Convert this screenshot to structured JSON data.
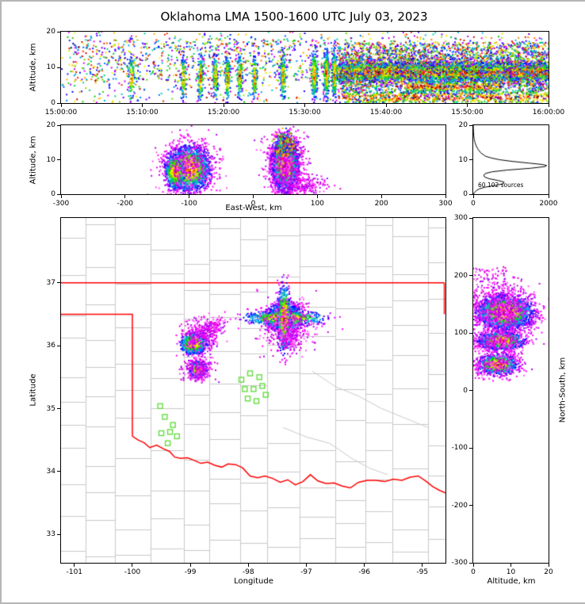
{
  "title": "Oklahoma LMA 1500-1600 UTC July 03, 2023",
  "accent_colors": {
    "state_border": "#ff0000",
    "county_line": "#c9c9c9",
    "station_marker": "#63dd3f",
    "frame": "#000000",
    "histogram_line": "#000000"
  },
  "chart_data": [
    {
      "id": "time_height",
      "type": "scatter",
      "xlabel": "",
      "ylabel": "Altitude, km",
      "xlim": [
        0,
        3600
      ],
      "ylim": [
        0,
        20
      ],
      "xticks": {
        "values": [
          0,
          600,
          1200,
          1800,
          2400,
          3000,
          3600
        ],
        "labels": [
          "15:00:00",
          "15:10:00",
          "15:20:00",
          "15:30:00",
          "15:40:00",
          "15:50:00",
          "16:00:00"
        ]
      },
      "yticks": {
        "values": [
          0,
          10,
          20
        ],
        "labels": [
          "0",
          "10",
          "20"
        ]
      },
      "layers": [
        {
          "kind": "uniform",
          "x0": 0,
          "x1": 3600,
          "y0": 0,
          "y1": 20,
          "n": 900,
          "style": "speckle"
        },
        {
          "kind": "uniform",
          "x0": 60,
          "x1": 2050,
          "y0": 6,
          "y1": 18,
          "n": 650,
          "style": "speckle"
        },
        {
          "kind": "uniform",
          "x0": 2050,
          "x1": 3600,
          "y0": 10,
          "y1": 17,
          "n": 1200,
          "style": "speckle"
        },
        {
          "kind": "gauss",
          "cx": 520,
          "cy": 7,
          "sx": 12,
          "sy": 3.0,
          "n": 90,
          "style": "storm"
        },
        {
          "kind": "gauss",
          "cx": 905,
          "cy": 7,
          "sx": 10,
          "sy": 3.0,
          "n": 120,
          "style": "storm"
        },
        {
          "kind": "gauss",
          "cx": 1030,
          "cy": 7,
          "sx": 10,
          "sy": 3.2,
          "n": 160,
          "style": "storm"
        },
        {
          "kind": "gauss",
          "cx": 1140,
          "cy": 7.5,
          "sx": 9,
          "sy": 3.0,
          "n": 150,
          "style": "storm"
        },
        {
          "kind": "gauss",
          "cx": 1230,
          "cy": 7,
          "sx": 9,
          "sy": 3.2,
          "n": 170,
          "style": "storm"
        },
        {
          "kind": "gauss",
          "cx": 1320,
          "cy": 7.5,
          "sx": 10,
          "sy": 3.0,
          "n": 160,
          "style": "storm"
        },
        {
          "kind": "gauss",
          "cx": 1430,
          "cy": 7,
          "sx": 9,
          "sy": 3.0,
          "n": 140,
          "style": "storm"
        },
        {
          "kind": "gauss",
          "cx": 1640,
          "cy": 7.5,
          "sx": 10,
          "sy": 3.2,
          "n": 150,
          "style": "storm"
        },
        {
          "kind": "gauss",
          "cx": 1870,
          "cy": 8,
          "sx": 11,
          "sy": 3.4,
          "n": 260,
          "style": "storm"
        },
        {
          "kind": "gauss",
          "cx": 1960,
          "cy": 8,
          "sx": 10,
          "sy": 3.4,
          "n": 260,
          "style": "storm"
        },
        {
          "kind": "gauss",
          "cx": 2020,
          "cy": 8,
          "sx": 10,
          "sy": 3.4,
          "n": 240,
          "style": "storm"
        },
        {
          "kind": "band",
          "x0": 2050,
          "x1": 3600,
          "cy": 8.6,
          "sy": 1.15,
          "n": 7000,
          "style": "storm"
        },
        {
          "kind": "band",
          "x0": 2050,
          "x1": 3600,
          "cy": 8.6,
          "sy": 3.0,
          "n": 2600,
          "style": "speckle"
        },
        {
          "kind": "band",
          "x0": 2080,
          "x1": 3600,
          "cy": 1.6,
          "sy": 1.1,
          "n": 700,
          "style": "storm"
        },
        {
          "kind": "band",
          "x0": 2550,
          "x1": 3250,
          "cy": 4.6,
          "sy": 0.9,
          "n": 500,
          "style": "storm"
        },
        {
          "kind": "uniform",
          "x0": 2050,
          "x1": 3600,
          "y0": 0,
          "y1": 6,
          "n": 450,
          "style": "speckle"
        }
      ]
    },
    {
      "id": "ew_height",
      "type": "scatter",
      "xlabel": "East-West, km",
      "ylabel": "Altitude, km",
      "xlim": [
        -300,
        300
      ],
      "ylim": [
        0,
        20
      ],
      "xticks": {
        "values": [
          -300,
          -200,
          -100,
          0,
          100,
          200,
          300
        ],
        "labels": [
          "-300",
          "-200",
          "-100",
          "0",
          "100",
          "200",
          "300"
        ]
      },
      "yticks": {
        "values": [
          0,
          10,
          20
        ],
        "labels": [
          "0",
          "10",
          "20"
        ]
      },
      "layers": [
        {
          "kind": "gauss",
          "cx": -100,
          "cy": 7.5,
          "sx": 15,
          "sy": 2.9,
          "n": 2600,
          "style": "storm"
        },
        {
          "kind": "gauss",
          "cx": -122,
          "cy": 6.5,
          "sx": 7,
          "sy": 2.4,
          "n": 600,
          "style": "storm"
        },
        {
          "kind": "gauss",
          "cx": -100,
          "cy": 8,
          "sx": 22,
          "sy": 4.5,
          "n": 480,
          "style": "magenta"
        },
        {
          "kind": "gauss",
          "cx": 50,
          "cy": 8.5,
          "sx": 9,
          "sy": 3.3,
          "n": 4200,
          "style": "storm"
        },
        {
          "kind": "gauss",
          "cx": 50,
          "cy": 9,
          "sx": 15,
          "sy": 4.5,
          "n": 600,
          "style": "magenta"
        },
        {
          "kind": "gauss",
          "cx": 80,
          "cy": 2.5,
          "sx": 18,
          "sy": 1.5,
          "n": 220,
          "style": "magenta"
        },
        {
          "kind": "gauss",
          "cx": 50,
          "cy": 14,
          "sx": 7,
          "sy": 1.6,
          "n": 400,
          "style": "speckle"
        }
      ]
    },
    {
      "id": "alt_histogram",
      "type": "line",
      "xlabel": "",
      "ylabel": "",
      "annotation": "60 102 sources",
      "xlim": [
        0,
        2000
      ],
      "ylim": [
        0,
        20
      ],
      "xticks": {
        "values": [
          0,
          2000
        ],
        "labels": [
          "0",
          "2000"
        ]
      },
      "yticks": {
        "values": [
          0,
          10,
          20
        ],
        "labels": [
          "0",
          "10",
          "20"
        ]
      },
      "profile_alt_km": [
        0,
        0.5,
        1,
        1.5,
        2,
        2.5,
        3,
        3.5,
        4,
        4.5,
        5,
        5.5,
        6,
        6.5,
        7,
        7.5,
        8,
        8.3,
        8.6,
        9,
        9.5,
        10,
        10.5,
        11,
        12,
        13,
        14,
        15,
        16,
        17,
        18,
        19,
        20
      ],
      "profile_counts": [
        10,
        30,
        80,
        150,
        300,
        550,
        800,
        820,
        650,
        420,
        300,
        280,
        320,
        500,
        900,
        1500,
        1900,
        1950,
        1850,
        1500,
        1050,
        700,
        480,
        330,
        200,
        130,
        80,
        45,
        25,
        14,
        8,
        4,
        2
      ]
    },
    {
      "id": "plan_view",
      "type": "scatter",
      "xlabel": "Longitude",
      "ylabel": "Latitude",
      "xlim": [
        -101.23,
        -94.6
      ],
      "ylim": [
        32.55,
        38.03
      ],
      "xticks": {
        "values": [
          -101,
          -100,
          -99,
          -98,
          -97,
          -96,
          -95
        ],
        "labels": [
          "-101",
          "-100",
          "-99",
          "-98",
          "-97",
          "-96",
          "-95"
        ]
      },
      "yticks": {
        "values": [
          33,
          34,
          35,
          36,
          37
        ],
        "labels": [
          "33",
          "34",
          "35",
          "36",
          "37"
        ]
      },
      "state_border_segments": [
        [
          [
            -101.23,
            37.0
          ],
          [
            -94.62,
            37.0
          ]
        ],
        [
          [
            -94.62,
            37.0
          ],
          [
            -94.62,
            36.5
          ]
        ],
        [
          [
            -101.23,
            36.5
          ],
          [
            -100.0,
            36.5
          ],
          [
            -100.0,
            34.56
          ]
        ],
        [
          [
            -100.0,
            34.56
          ],
          [
            -99.9,
            34.5
          ],
          [
            -99.8,
            34.46
          ],
          [
            -99.7,
            34.38
          ],
          [
            -99.58,
            34.42
          ],
          [
            -99.46,
            34.36
          ],
          [
            -99.36,
            34.32
          ],
          [
            -99.27,
            34.23
          ],
          [
            -99.17,
            34.21
          ],
          [
            -99.05,
            34.22
          ],
          [
            -98.94,
            34.18
          ],
          [
            -98.82,
            34.13
          ],
          [
            -98.7,
            34.15
          ],
          [
            -98.58,
            34.1
          ],
          [
            -98.46,
            34.07
          ],
          [
            -98.35,
            34.12
          ],
          [
            -98.22,
            34.11
          ],
          [
            -98.1,
            34.06
          ],
          [
            -97.97,
            33.93
          ],
          [
            -97.84,
            33.9
          ],
          [
            -97.71,
            33.93
          ],
          [
            -97.58,
            33.89
          ],
          [
            -97.45,
            33.83
          ],
          [
            -97.32,
            33.87
          ],
          [
            -97.19,
            33.79
          ],
          [
            -97.06,
            33.84
          ],
          [
            -96.93,
            33.95
          ],
          [
            -96.8,
            33.85
          ],
          [
            -96.66,
            33.81
          ],
          [
            -96.52,
            33.82
          ],
          [
            -96.38,
            33.77
          ],
          [
            -96.24,
            33.74
          ],
          [
            -96.1,
            33.83
          ],
          [
            -95.95,
            33.86
          ],
          [
            -95.8,
            33.86
          ],
          [
            -95.65,
            33.84
          ],
          [
            -95.5,
            33.88
          ],
          [
            -95.35,
            33.86
          ],
          [
            -95.21,
            33.91
          ],
          [
            -95.07,
            33.93
          ],
          [
            -94.94,
            33.85
          ],
          [
            -94.82,
            33.76
          ],
          [
            -94.7,
            33.7
          ],
          [
            -94.6,
            33.66
          ]
        ]
      ],
      "river_lines": [
        [
          [
            -97.4,
            34.7
          ],
          [
            -97.0,
            34.55
          ],
          [
            -96.6,
            34.45
          ],
          [
            -96.2,
            34.2
          ],
          [
            -95.9,
            34.05
          ],
          [
            -95.6,
            33.95
          ]
        ],
        [
          [
            -96.9,
            35.6
          ],
          [
            -96.5,
            35.35
          ],
          [
            -96.1,
            35.2
          ],
          [
            -95.7,
            35.0
          ],
          [
            -95.3,
            34.85
          ],
          [
            -94.9,
            34.7
          ]
        ]
      ],
      "stations_lon_lat": [
        [
          -99.52,
          35.04
        ],
        [
          -99.44,
          34.87
        ],
        [
          -99.5,
          34.61
        ],
        [
          -99.35,
          34.63
        ],
        [
          -99.23,
          34.56
        ],
        [
          -99.39,
          34.45
        ],
        [
          -99.3,
          34.74
        ],
        [
          -98.12,
          35.46
        ],
        [
          -97.97,
          35.56
        ],
        [
          -97.81,
          35.5
        ],
        [
          -98.06,
          35.31
        ],
        [
          -97.91,
          35.31
        ],
        [
          -97.76,
          35.36
        ],
        [
          -98.01,
          35.16
        ],
        [
          -97.86,
          35.12
        ],
        [
          -97.7,
          35.22
        ]
      ],
      "layers": [
        {
          "kind": "gauss",
          "cx": -97.38,
          "cy": 36.44,
          "sx": 0.13,
          "sy": 0.1,
          "n": 2400,
          "style": "storm"
        },
        {
          "kind": "gauss",
          "cx": -97.38,
          "cy": 36.44,
          "sx": 0.32,
          "sy": 0.055,
          "n": 600,
          "style": "storm"
        },
        {
          "kind": "gauss",
          "cx": -97.38,
          "cy": 36.44,
          "sx": 0.055,
          "sy": 0.24,
          "n": 600,
          "style": "storm"
        },
        {
          "kind": "gauss",
          "cx": -97.33,
          "cy": 36.3,
          "sx": 0.22,
          "sy": 0.2,
          "n": 380,
          "style": "magenta"
        },
        {
          "kind": "gauss",
          "cx": -97.28,
          "cy": 36.1,
          "sx": 0.07,
          "sy": 0.09,
          "n": 130,
          "style": "magenta"
        },
        {
          "kind": "gauss",
          "cx": -98.95,
          "cy": 36.03,
          "sx": 0.1,
          "sy": 0.075,
          "n": 950,
          "style": "storm"
        },
        {
          "kind": "gauss",
          "cx": -98.82,
          "cy": 36.16,
          "sx": 0.16,
          "sy": 0.13,
          "n": 300,
          "style": "magenta"
        },
        {
          "kind": "gauss",
          "cx": -98.6,
          "cy": 36.32,
          "sx": 0.1,
          "sy": 0.08,
          "n": 120,
          "style": "magenta"
        },
        {
          "kind": "gauss",
          "cx": -98.87,
          "cy": 35.62,
          "sx": 0.065,
          "sy": 0.055,
          "n": 750,
          "style": "storm"
        },
        {
          "kind": "gauss",
          "cx": -98.87,
          "cy": 35.62,
          "sx": 0.13,
          "sy": 0.11,
          "n": 220,
          "style": "magenta"
        }
      ]
    },
    {
      "id": "ns_height",
      "type": "scatter",
      "xlabel": "Altitude, km",
      "ylabel": "North-South, km",
      "xlim": [
        0,
        20
      ],
      "ylim": [
        -300,
        300
      ],
      "xticks": {
        "values": [
          0,
          10,
          20
        ],
        "labels": [
          "0",
          "10",
          "20"
        ]
      },
      "yticks": {
        "values": [
          -300,
          -200,
          -100,
          0,
          100,
          200,
          300
        ],
        "labels": [
          "-300",
          "-200",
          "-100",
          "0",
          "100",
          "200",
          "300"
        ]
      },
      "layers": [
        {
          "kind": "gauss",
          "cx": 8.5,
          "cy": 136,
          "sx": 3.2,
          "sy": 13,
          "n": 3200,
          "style": "storm"
        },
        {
          "kind": "gauss",
          "cx": 8,
          "cy": 140,
          "sx": 4.5,
          "sy": 19,
          "n": 700,
          "style": "magenta"
        },
        {
          "kind": "gauss",
          "cx": 7.5,
          "cy": 86,
          "sx": 2.6,
          "sy": 7,
          "n": 1400,
          "style": "storm"
        },
        {
          "kind": "gauss",
          "cx": 7,
          "cy": 86,
          "sx": 4,
          "sy": 11,
          "n": 280,
          "style": "magenta"
        },
        {
          "kind": "gauss",
          "cx": 6.5,
          "cy": 45,
          "sx": 2.3,
          "sy": 8,
          "n": 900,
          "style": "storm"
        },
        {
          "kind": "gauss",
          "cx": 6,
          "cy": 45,
          "sx": 3.5,
          "sy": 12,
          "n": 220,
          "style": "magenta"
        },
        {
          "kind": "uniform",
          "x0": 0,
          "x1": 13,
          "y0": 15,
          "y1": 200,
          "n": 220,
          "style": "magenta"
        },
        {
          "kind": "uniform",
          "x0": 0,
          "x1": 9,
          "y0": 180,
          "y1": 215,
          "n": 60,
          "style": "magenta"
        }
      ]
    }
  ]
}
